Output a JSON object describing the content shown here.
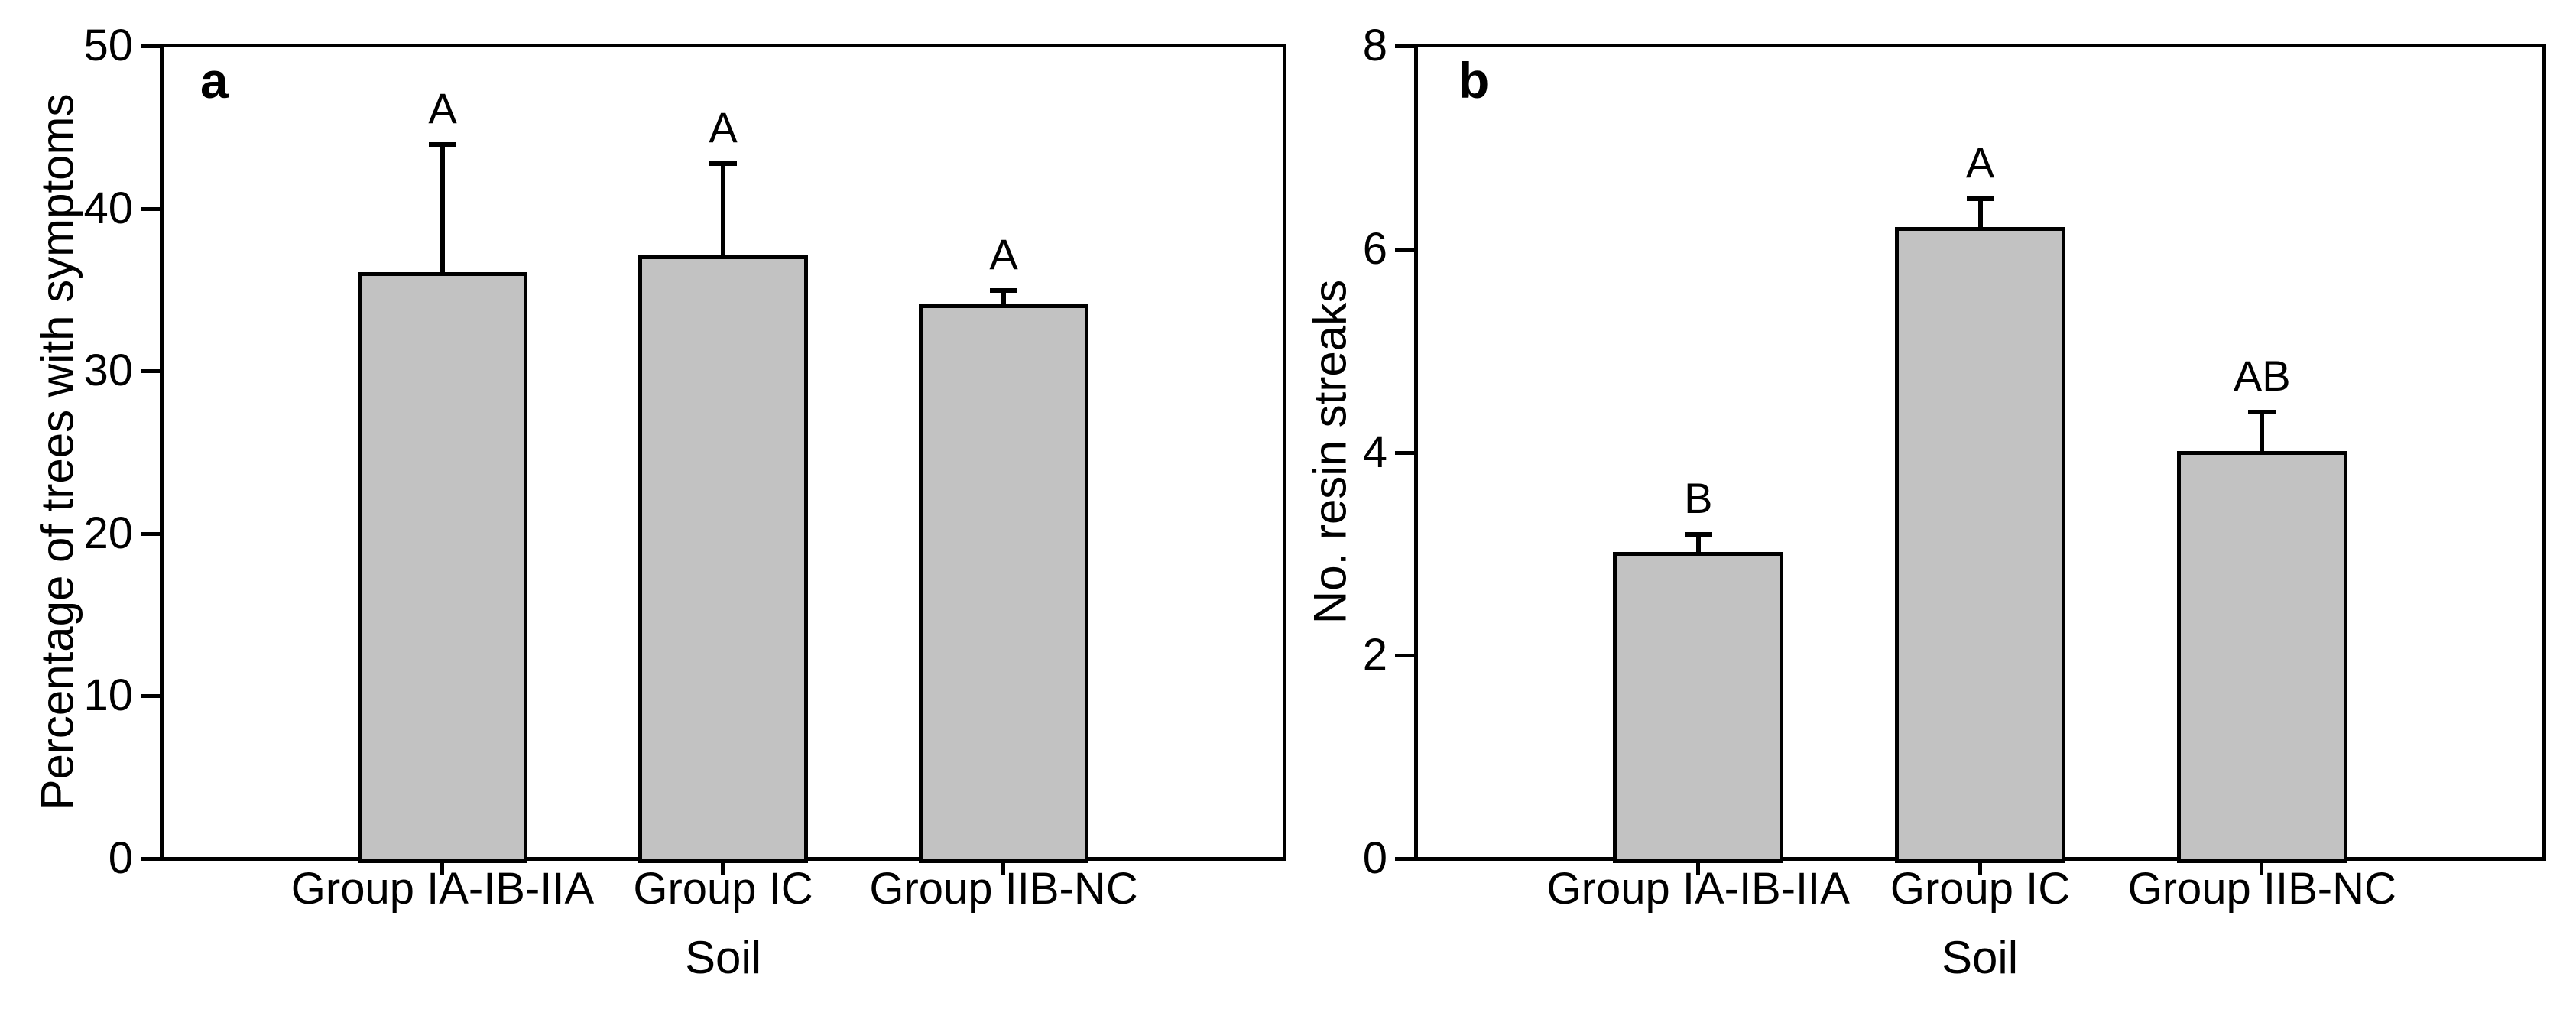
{
  "figure": {
    "background": "#ffffff",
    "text_color": "#000000"
  },
  "chart_data": [
    {
      "type": "bar",
      "panel_label": "a",
      "ylabel": "Percentage of trees with symptoms",
      "xlabel": "Soil",
      "categories": [
        "Group IA-IB-IIA",
        "Group IC",
        "Group IIB-NC"
      ],
      "values": [
        36,
        37,
        34
      ],
      "errors_plus": [
        8,
        5.8,
        1
      ],
      "sig_letters": [
        "A",
        "A",
        "A"
      ],
      "ylim": [
        0,
        50
      ],
      "yticks": [
        0,
        10,
        20,
        30,
        40,
        50
      ],
      "bar_fill": "#c2c2c2",
      "bar_border": "#000000",
      "grid": false,
      "legend": "none"
    },
    {
      "type": "bar",
      "panel_label": "b",
      "ylabel": "No. resin streaks",
      "xlabel": "Soil",
      "categories": [
        "Group IA-IB-IIA",
        "Group IC",
        "Group IIB-NC"
      ],
      "values": [
        3.0,
        6.2,
        4.0
      ],
      "errors_plus": [
        0.2,
        0.3,
        0.4
      ],
      "sig_letters": [
        "B",
        "A",
        "AB"
      ],
      "ylim": [
        0,
        8
      ],
      "yticks": [
        0,
        2,
        4,
        6,
        8
      ],
      "bar_fill": "#c2c2c2",
      "bar_border": "#000000",
      "grid": false,
      "legend": "none"
    }
  ]
}
